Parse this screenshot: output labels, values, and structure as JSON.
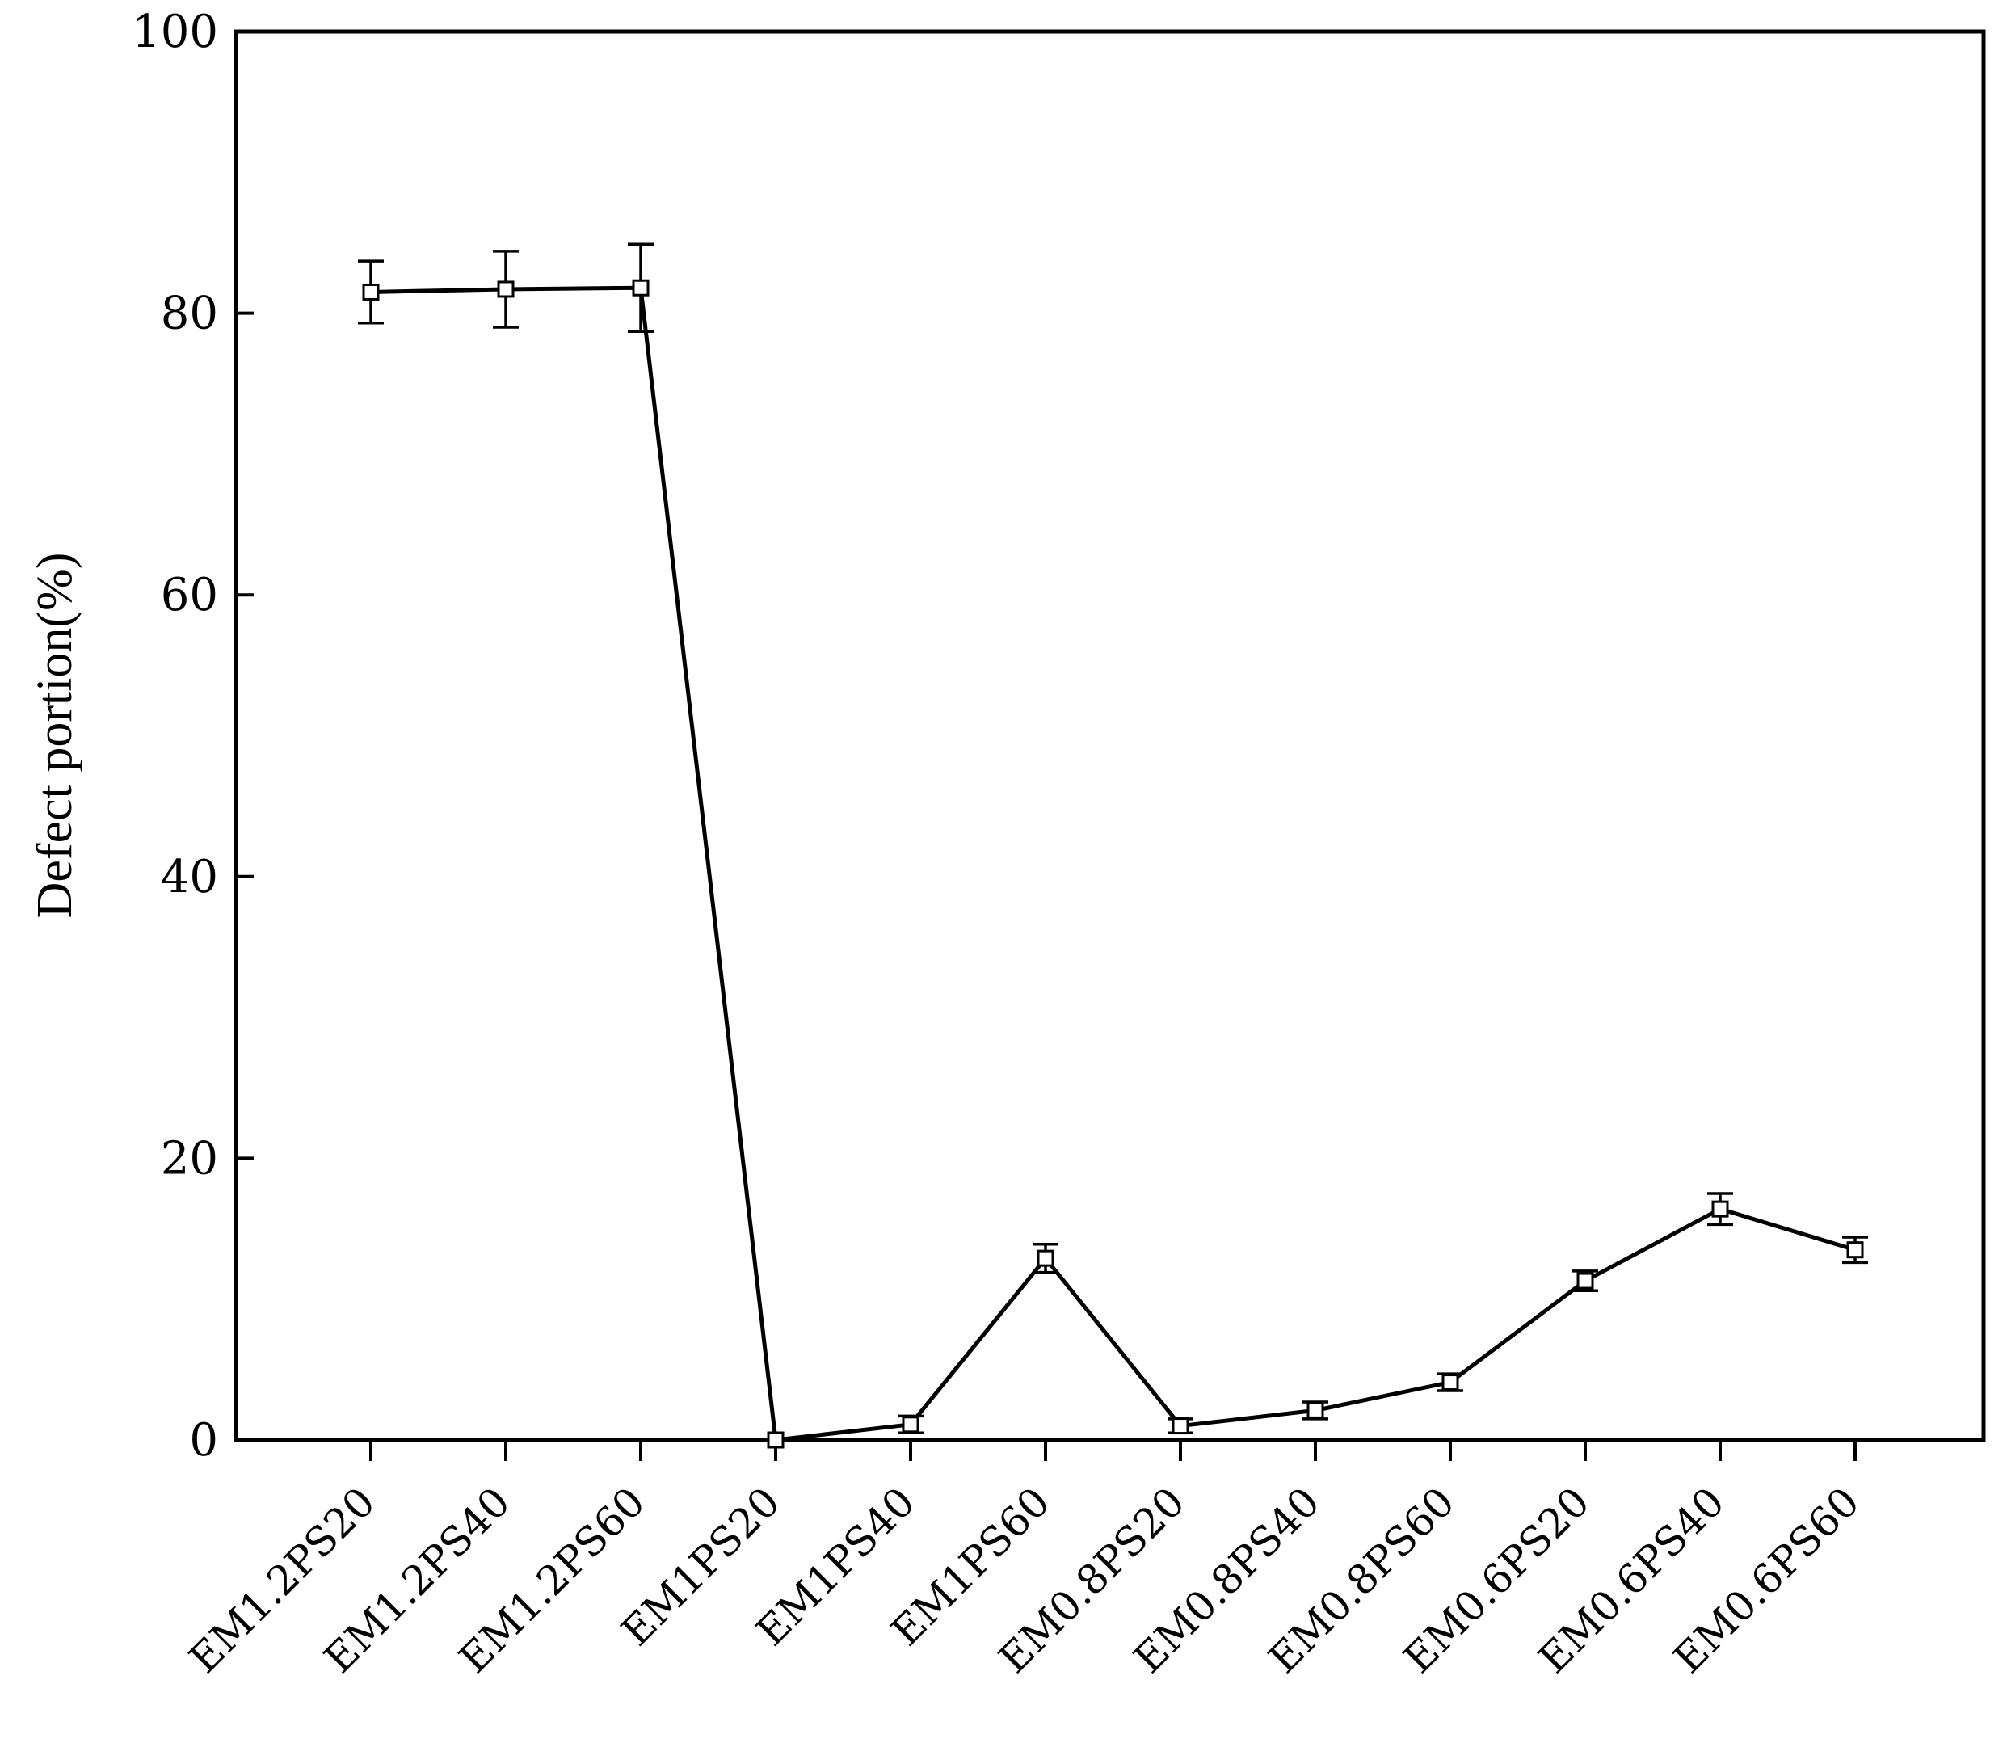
{
  "chart_data": {
    "type": "line",
    "title": "",
    "xlabel": "",
    "ylabel": "Defect portion(%)",
    "ylim": [
      0,
      100
    ],
    "yticks": [
      0,
      20,
      40,
      60,
      80,
      100
    ],
    "categories": [
      "EM1.2PS20",
      "EM1.2PS40",
      "EM1.2PS60",
      "EM1PS20",
      "EM1PS40",
      "EM1PS60",
      "EM0.8PS20",
      "EM0.8PS40",
      "EM0.8PS60",
      "EM0.6PS20",
      "EM0.6PS40",
      "EM0.6PS60"
    ],
    "series": [
      {
        "values": [
          81.5,
          81.7,
          81.8,
          0.0,
          1.1,
          12.9,
          1.0,
          2.1,
          4.1,
          11.3,
          16.4,
          13.5
        ],
        "errors": [
          2.2,
          2.7,
          3.1,
          0.0,
          0.6,
          1.0,
          0.5,
          0.6,
          0.6,
          0.7,
          1.1,
          0.9
        ],
        "marker": "square",
        "color": "#000000"
      }
    ],
    "grid": false,
    "legend": "none"
  }
}
